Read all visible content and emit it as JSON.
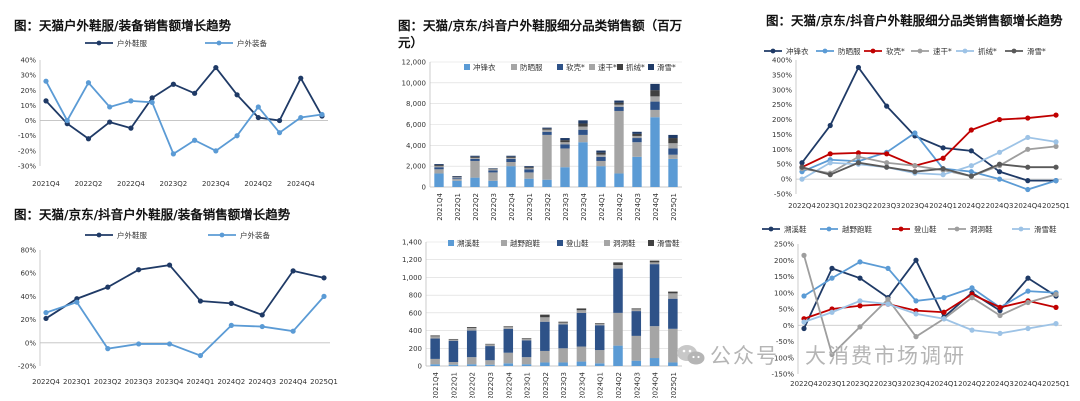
{
  "titles": {
    "p1": "图：天猫户外鞋服/装备销售额增长趋势",
    "p2": "图：天猫/京东/抖音户外鞋服/装备销售额增长趋势",
    "p3": "图：天猫/京东/抖音户外鞋服细分品类销售额（百万元）",
    "p4": "",
    "p5": "图：天猫/京东/抖音户外鞋服细分品类销售额增长趋势",
    "p6": ""
  },
  "watermark": "公众号 · 大消费市场调研",
  "colors": {
    "navy": "#1f3a66",
    "lightblue": "#5b9bd5",
    "skyblue": "#5b9bd5",
    "gray": "#a5a5a5",
    "red": "#c00000",
    "palegray": "#9e9e9e",
    "lightsky": "#9dc3e6",
    "darkgray": "#595959",
    "seg_navy": "#2e5288",
    "seg_dark": "#404040"
  },
  "chart_data": [
    {
      "id": "p1",
      "type": "line",
      "categories": [
        "2021Q4",
        "",
        "2022Q2",
        "",
        "2022Q4",
        "",
        "2023Q2",
        "",
        "2023Q4",
        "",
        "2024Q2",
        "",
        "2024Q4",
        ""
      ],
      "ylim": [
        -30,
        40
      ],
      "yticks": [
        "-30%",
        "-20%",
        "-10%",
        "0%",
        "10%",
        "20%",
        "30%",
        "40%"
      ],
      "series": [
        {
          "name": "户外鞋服",
          "color": "#1f3a66",
          "values": [
            13,
            -2,
            -12,
            -1,
            -5,
            15,
            24,
            18,
            35,
            17,
            2,
            0,
            28,
            3
          ]
        },
        {
          "name": "户外装备",
          "color": "#5b9bd5",
          "values": [
            26,
            0,
            25,
            9,
            13,
            12,
            -22,
            -13,
            -20,
            -10,
            9,
            -8,
            2,
            4
          ]
        }
      ]
    },
    {
      "id": "p2",
      "type": "line",
      "categories": [
        "2022Q4",
        "2023Q1",
        "2023Q2",
        "2023Q3",
        "2023Q4",
        "2024Q1",
        "2024Q2",
        "2024Q3",
        "2024Q4",
        "2025Q1"
      ],
      "ylim": [
        -20,
        80
      ],
      "yticks": [
        "-20%",
        "0%",
        "20%",
        "40%",
        "60%",
        "80%"
      ],
      "series": [
        {
          "name": "户外鞋服",
          "color": "#1f3a66",
          "values": [
            21,
            38,
            48,
            63,
            67,
            36,
            34,
            24,
            62,
            56
          ]
        },
        {
          "name": "户外装备",
          "color": "#5b9bd5",
          "values": [
            26,
            35,
            -5,
            -1,
            -1,
            -11,
            15,
            14,
            10,
            40
          ]
        }
      ]
    },
    {
      "id": "p3",
      "type": "bar",
      "stacked": true,
      "categories": [
        "2021Q4",
        "2022Q1",
        "2022Q2",
        "2022Q3",
        "2022Q4",
        "2023Q1",
        "2023Q2",
        "2023Q3",
        "2023Q4",
        "2024Q1",
        "2024Q2",
        "2024Q3",
        "2024Q4",
        "2025Q1"
      ],
      "ylim": [
        0,
        12000
      ],
      "yticks": [
        "0",
        "2,000",
        "4,000",
        "6,000",
        "8,000",
        "10,000",
        "12,000"
      ],
      "series": [
        {
          "name": "冲锋衣",
          "color": "#5b9bd5",
          "values": [
            1300,
            600,
            900,
            600,
            2000,
            800,
            700,
            1900,
            4300,
            2000,
            1300,
            2900,
            6700,
            2700
          ]
        },
        {
          "name": "防晒服",
          "color": "#a5a5a5",
          "values": [
            400,
            200,
            1600,
            800,
            400,
            600,
            4300,
            1800,
            700,
            500,
            6000,
            1400,
            700,
            400
          ]
        },
        {
          "name": "软壳*",
          "color": "#2e5288",
          "values": [
            200,
            100,
            200,
            200,
            300,
            300,
            300,
            400,
            500,
            400,
            400,
            400,
            800,
            600
          ]
        },
        {
          "name": "速干*",
          "color": "#a5a5a5",
          "values": [
            100,
            50,
            100,
            100,
            100,
            100,
            200,
            200,
            300,
            200,
            200,
            200,
            500,
            500
          ]
        },
        {
          "name": "抓绒*",
          "color": "#404040",
          "values": [
            100,
            50,
            100,
            50,
            100,
            100,
            100,
            200,
            300,
            200,
            200,
            200,
            600,
            500
          ]
        },
        {
          "name": "滑雪*",
          "color": "#1f3a66",
          "values": [
            100,
            50,
            100,
            50,
            100,
            100,
            100,
            200,
            300,
            200,
            200,
            200,
            600,
            300
          ]
        }
      ]
    },
    {
      "id": "p4",
      "type": "bar",
      "stacked": true,
      "categories": [
        "2021Q4",
        "2022Q1",
        "2022Q2",
        "2022Q3",
        "2022Q4",
        "2023Q1",
        "2023Q2",
        "2023Q3",
        "2023Q4",
        "2024Q1",
        "2024Q2",
        "2024Q3",
        "2024Q4",
        "2025Q1"
      ],
      "ylim": [
        0,
        1400
      ],
      "yticks": [
        "0",
        "200",
        "400",
        "600",
        "800",
        "1,000",
        "1,200",
        "1,400"
      ],
      "series": [
        {
          "name": "溯溪鞋",
          "color": "#5b9bd5",
          "values": [
            20,
            15,
            20,
            15,
            30,
            20,
            40,
            40,
            50,
            30,
            230,
            60,
            90,
            40
          ]
        },
        {
          "name": "越野跑鞋",
          "color": "#a5a5a5",
          "values": [
            60,
            30,
            80,
            50,
            120,
            80,
            130,
            160,
            170,
            150,
            370,
            280,
            360,
            380
          ]
        },
        {
          "name": "登山鞋",
          "color": "#2e5288",
          "values": [
            230,
            240,
            300,
            160,
            270,
            190,
            330,
            270,
            380,
            280,
            500,
            280,
            700,
            340
          ]
        },
        {
          "name": "洞洞鞋",
          "color": "#a5a5a5",
          "values": [
            25,
            15,
            30,
            20,
            25,
            20,
            50,
            20,
            30,
            20,
            40,
            20,
            20,
            60
          ]
        },
        {
          "name": "滑雪鞋",
          "color": "#404040",
          "values": [
            10,
            5,
            10,
            5,
            5,
            5,
            30,
            10,
            20,
            5,
            30,
            10,
            20,
            20
          ]
        }
      ]
    },
    {
      "id": "p5",
      "type": "line",
      "categories": [
        "2022Q4",
        "2023Q1",
        "2023Q2",
        "2023Q3",
        "2023Q4",
        "2024Q1",
        "2024Q2",
        "2024Q3",
        "2024Q4",
        "2025Q1"
      ],
      "ylim": [
        -50,
        400
      ],
      "yticks": [
        "-50%",
        "0%",
        "50%",
        "100%",
        "150%",
        "200%",
        "250%",
        "300%",
        "350%",
        "400%"
      ],
      "series": [
        {
          "name": "冲锋衣",
          "color": "#1f3a66",
          "values": [
            55,
            180,
            375,
            245,
            145,
            105,
            95,
            25,
            -5,
            -5
          ]
        },
        {
          "name": "防晒服",
          "color": "#5b9bd5",
          "values": [
            25,
            65,
            60,
            90,
            155,
            35,
            25,
            0,
            -35,
            -5
          ]
        },
        {
          "name": "软壳*",
          "color": "#c00000",
          "values": [
            40,
            85,
            88,
            85,
            45,
            70,
            165,
            200,
            205,
            215
          ]
        },
        {
          "name": "速干*",
          "color": "#9e9e9e",
          "values": [
            35,
            20,
            75,
            55,
            45,
            30,
            10,
            45,
            100,
            110
          ]
        },
        {
          "name": "抓绒*",
          "color": "#9dc3e6",
          "values": [
            0,
            55,
            50,
            40,
            20,
            15,
            45,
            90,
            140,
            125
          ]
        },
        {
          "name": "滑雪*",
          "color": "#595959",
          "values": [
            40,
            15,
            55,
            40,
            25,
            35,
            10,
            50,
            40,
            40
          ]
        }
      ]
    },
    {
      "id": "p6",
      "type": "line",
      "categories": [
        "2022Q4",
        "2023Q1",
        "2023Q2",
        "2023Q3",
        "2023Q4",
        "2024Q1",
        "2024Q2",
        "2024Q3",
        "2024Q4",
        "2025Q1"
      ],
      "ylim": [
        -150,
        250
      ],
      "yticks": [
        "-150%",
        "-100%",
        "-50%",
        "0%",
        "50%",
        "100%",
        "150%",
        "200%",
        "250%"
      ],
      "series": [
        {
          "name": "溯溪鞋",
          "color": "#1f3a66",
          "values": [
            -10,
            175,
            145,
            85,
            200,
            25,
            100,
            45,
            145,
            90
          ]
        },
        {
          "name": "越野跑鞋",
          "color": "#5b9bd5",
          "values": [
            90,
            145,
            195,
            175,
            75,
            85,
            115,
            55,
            105,
            100
          ]
        },
        {
          "name": "登山鞋",
          "color": "#c00000",
          "values": [
            20,
            50,
            60,
            65,
            45,
            40,
            95,
            55,
            75,
            55
          ]
        },
        {
          "name": "洞洞鞋",
          "color": "#9e9e9e",
          "values": [
            215,
            -90,
            -5,
            80,
            -35,
            20,
            85,
            30,
            70,
            95
          ]
        },
        {
          "name": "滑雪鞋",
          "color": "#9dc3e6",
          "values": [
            10,
            40,
            75,
            65,
            35,
            20,
            -15,
            -25,
            -10,
            5
          ]
        }
      ]
    }
  ]
}
